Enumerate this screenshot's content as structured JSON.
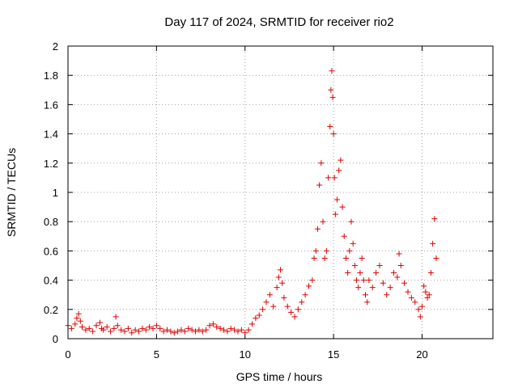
{
  "chart_data": {
    "type": "scatter",
    "title": "Day 117 of 2024, SRMTID for receiver rio2",
    "xlabel": "GPS time / hours",
    "ylabel": "SRMTID / TECUs",
    "xlim": [
      0,
      24
    ],
    "ylim": [
      0,
      2
    ],
    "xticks": [
      0,
      5,
      10,
      15,
      20
    ],
    "yticks": [
      0,
      0.2,
      0.4,
      0.6,
      0.8,
      1,
      1.2,
      1.4,
      1.6,
      1.8,
      2
    ],
    "xtick_labels": [
      "0",
      "5",
      "10",
      "15",
      "20"
    ],
    "ytick_labels": [
      "0",
      "0.2",
      "0.4",
      "0.6",
      "0.8",
      "1",
      "1.2",
      "1.4",
      "1.6",
      "1.8",
      "2"
    ],
    "grid": true,
    "marker": "plus",
    "color": "#e00000",
    "series": [
      {
        "name": "SRMTID",
        "x": [
          0.0,
          0.2,
          0.4,
          0.5,
          0.6,
          0.7,
          0.8,
          1.0,
          1.2,
          1.4,
          1.6,
          1.8,
          1.9,
          2.0,
          2.2,
          2.4,
          2.6,
          2.7,
          2.8,
          3.0,
          3.2,
          3.4,
          3.6,
          3.8,
          4.0,
          4.2,
          4.4,
          4.6,
          4.8,
          5.0,
          5.2,
          5.4,
          5.6,
          5.8,
          6.0,
          6.2,
          6.4,
          6.6,
          6.8,
          7.0,
          7.2,
          7.4,
          7.6,
          7.8,
          8.0,
          8.2,
          8.4,
          8.6,
          8.8,
          9.0,
          9.2,
          9.4,
          9.6,
          9.8,
          10.0,
          10.2,
          10.4,
          10.6,
          10.8,
          11.0,
          11.2,
          11.4,
          11.6,
          11.8,
          11.9,
          12.0,
          12.1,
          12.2,
          12.4,
          12.6,
          12.8,
          13.0,
          13.2,
          13.4,
          13.6,
          13.8,
          13.9,
          14.0,
          14.1,
          14.2,
          14.3,
          14.4,
          14.5,
          14.6,
          14.7,
          14.8,
          14.85,
          14.9,
          14.95,
          15.0,
          15.05,
          15.1,
          15.2,
          15.3,
          15.4,
          15.5,
          15.6,
          15.7,
          15.8,
          15.9,
          16.0,
          16.1,
          16.2,
          16.3,
          16.4,
          16.5,
          16.6,
          16.7,
          16.8,
          16.9,
          17.0,
          17.2,
          17.4,
          17.6,
          17.8,
          18.0,
          18.2,
          18.4,
          18.6,
          18.7,
          18.8,
          19.0,
          19.2,
          19.4,
          19.6,
          19.8,
          19.9,
          20.0,
          20.1,
          20.2,
          20.3,
          20.4,
          20.5,
          20.6,
          20.7,
          20.8
        ],
        "y": [
          0.09,
          0.07,
          0.1,
          0.14,
          0.17,
          0.12,
          0.08,
          0.06,
          0.07,
          0.05,
          0.09,
          0.11,
          0.07,
          0.06,
          0.08,
          0.05,
          0.07,
          0.15,
          0.09,
          0.06,
          0.05,
          0.07,
          0.04,
          0.06,
          0.05,
          0.07,
          0.06,
          0.08,
          0.07,
          0.09,
          0.07,
          0.05,
          0.06,
          0.05,
          0.04,
          0.05,
          0.06,
          0.05,
          0.07,
          0.06,
          0.05,
          0.06,
          0.05,
          0.06,
          0.09,
          0.1,
          0.08,
          0.07,
          0.06,
          0.05,
          0.07,
          0.06,
          0.05,
          0.06,
          0.04,
          0.06,
          0.1,
          0.14,
          0.16,
          0.2,
          0.25,
          0.3,
          0.22,
          0.35,
          0.42,
          0.47,
          0.38,
          0.28,
          0.22,
          0.18,
          0.15,
          0.2,
          0.25,
          0.3,
          0.36,
          0.4,
          0.55,
          0.6,
          0.75,
          1.05,
          1.2,
          0.8,
          0.55,
          0.6,
          1.1,
          1.45,
          1.7,
          1.83,
          1.65,
          1.4,
          1.1,
          0.85,
          0.95,
          1.15,
          1.22,
          0.9,
          0.7,
          0.55,
          0.45,
          0.6,
          0.8,
          0.65,
          0.5,
          0.4,
          0.35,
          0.45,
          0.55,
          0.4,
          0.3,
          0.25,
          0.4,
          0.35,
          0.45,
          0.5,
          0.38,
          0.3,
          0.35,
          0.45,
          0.42,
          0.58,
          0.5,
          0.38,
          0.32,
          0.28,
          0.25,
          0.2,
          0.15,
          0.22,
          0.36,
          0.32,
          0.28,
          0.3,
          0.45,
          0.65,
          0.82,
          0.55
        ]
      }
    ]
  }
}
